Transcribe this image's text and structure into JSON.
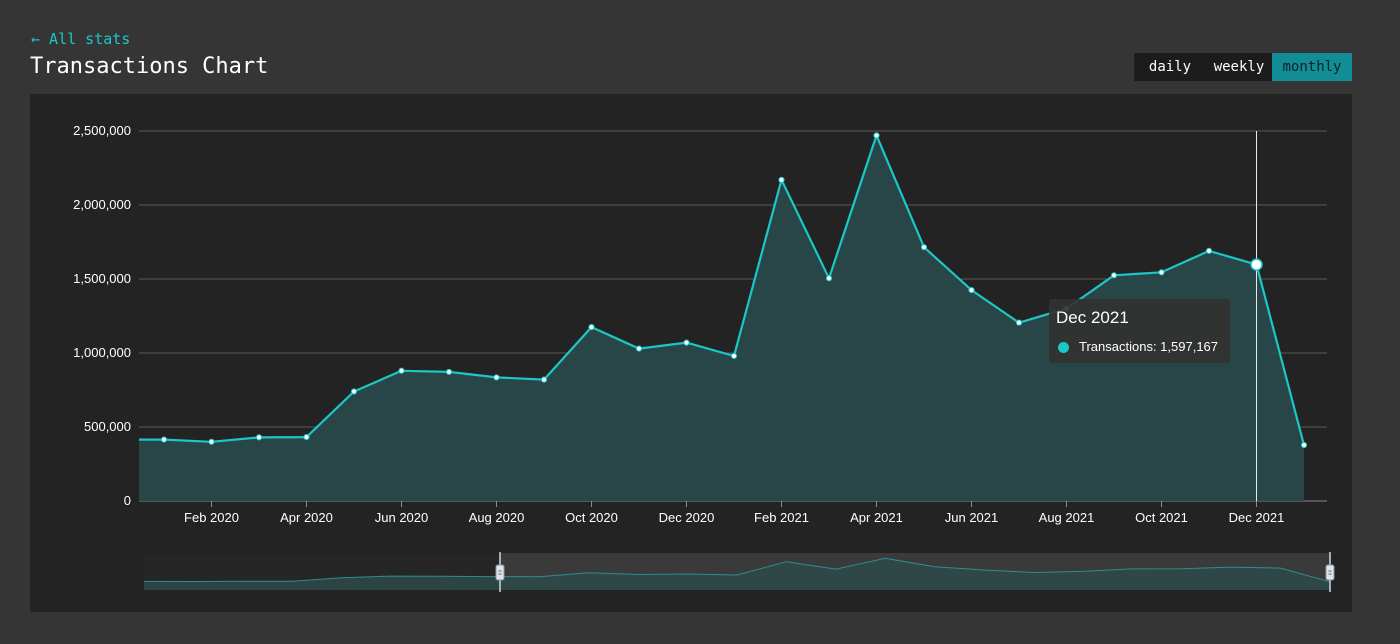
{
  "nav": {
    "back_label": "← All stats"
  },
  "page": {
    "title": "Transactions Chart"
  },
  "period_toggle": {
    "options": [
      "daily",
      "weekly",
      "monthly"
    ],
    "selected": "monthly"
  },
  "colors": {
    "accent": "#1cc7c7",
    "area_fill": "#29494a",
    "panel_bg": "#232323",
    "page_bg": "#353535",
    "active_button": "#138d95"
  },
  "tooltip": {
    "title": "Dec 2021",
    "series_label": "Transactions",
    "value_text": "1,597,167"
  },
  "chart_data": {
    "type": "area",
    "x": [
      "2020-01",
      "2020-02",
      "2020-03",
      "2020-04",
      "2020-05",
      "2020-06",
      "2020-07",
      "2020-08",
      "2020-09",
      "2020-10",
      "2020-11",
      "2020-12",
      "2021-01",
      "2021-02",
      "2021-03",
      "2021-04",
      "2021-05",
      "2021-06",
      "2021-07",
      "2021-08",
      "2021-09",
      "2021-10",
      "2021-11",
      "2021-12",
      "2022-01"
    ],
    "series": [
      {
        "name": "Transactions",
        "values": [
          415000,
          400000,
          430000,
          432000,
          740000,
          880000,
          872000,
          835000,
          820000,
          1175000,
          1030000,
          1070000,
          980000,
          2170000,
          1505000,
          2470000,
          1715000,
          1425000,
          1205000,
          1300000,
          1525000,
          1545000,
          1690000,
          1597167,
          378000
        ]
      }
    ],
    "x_tick_labels": [
      "Feb 2020",
      "Apr 2020",
      "Jun 2020",
      "Aug 2020",
      "Oct 2020",
      "Dec 2020",
      "Feb 2021",
      "Apr 2021",
      "Jun 2021",
      "Aug 2021",
      "Oct 2021",
      "Dec 2021"
    ],
    "y_tick_labels": [
      "0",
      "500,000",
      "1,000,000",
      "1,500,000",
      "2,000,000",
      "2,500,000"
    ],
    "ylim": [
      0,
      2500000
    ],
    "grid": true,
    "highlighted_point": "2021-12",
    "range_selector": true,
    "legend": "none"
  }
}
